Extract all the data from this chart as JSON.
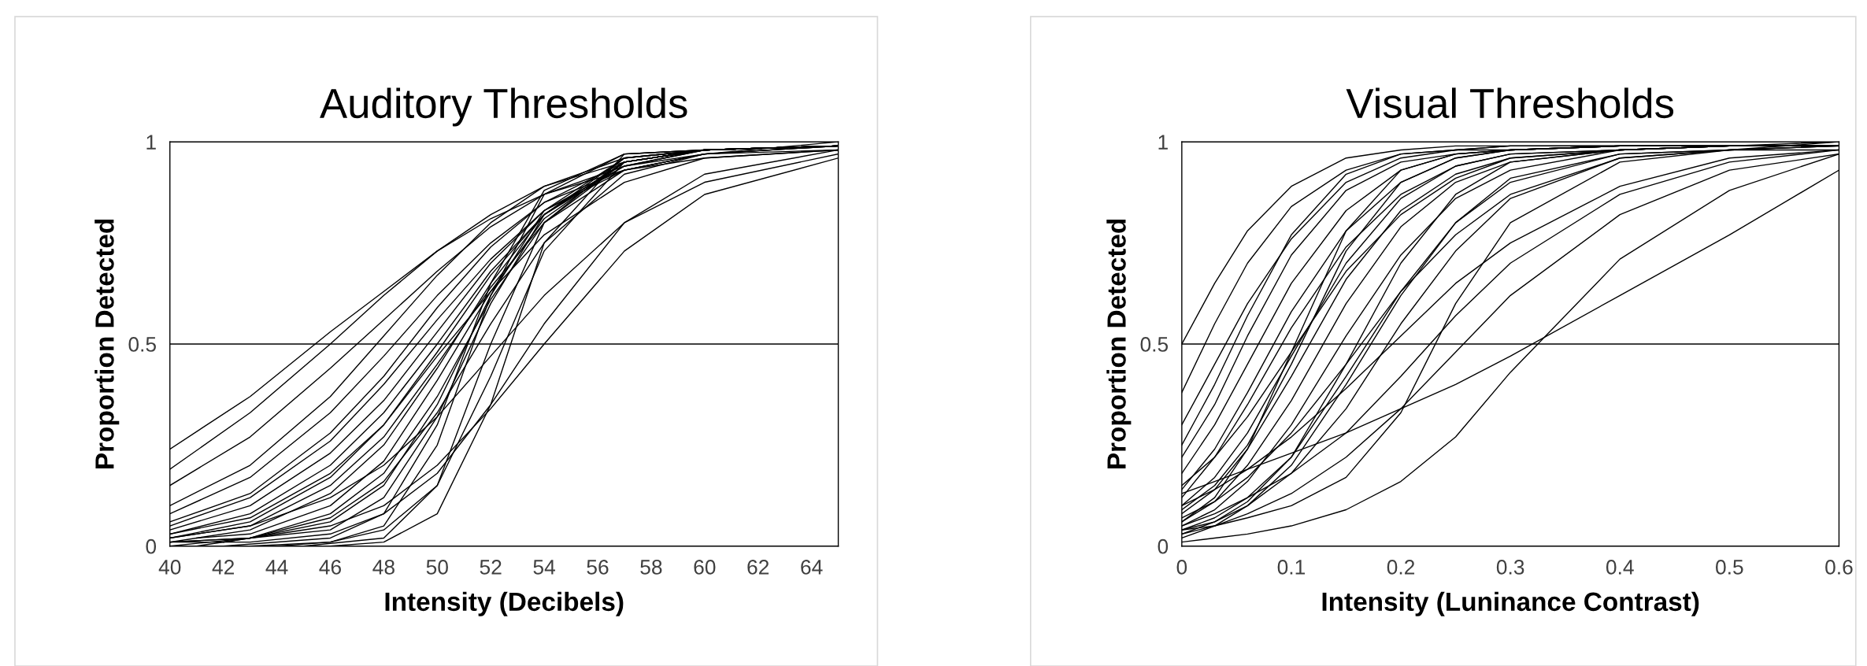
{
  "chart_data": [
    {
      "type": "line",
      "title": "Auditory Thresholds",
      "xlabel": "Intensity (Decibels)",
      "ylabel": "Proportion Detected",
      "color": "#000000",
      "xlim": [
        40,
        65
      ],
      "xticks": [
        40,
        42,
        44,
        46,
        48,
        50,
        52,
        54,
        56,
        58,
        60,
        62,
        64
      ],
      "ylim": [
        0,
        1
      ],
      "yticks": [
        0,
        0.5,
        1
      ],
      "grid": "y",
      "x": [
        40,
        43,
        46,
        48,
        50,
        52,
        54,
        57,
        60,
        65
      ],
      "series": [
        {
          "values": [
            0.24,
            0.37,
            0.53,
            0.63,
            0.73,
            0.81,
            0.87,
            0.93,
            0.96,
            0.98
          ]
        },
        {
          "values": [
            0.19,
            0.33,
            0.5,
            0.62,
            0.73,
            0.82,
            0.89,
            0.95,
            0.98,
            0.99
          ]
        },
        {
          "values": [
            0.15,
            0.27,
            0.44,
            0.56,
            0.68,
            0.79,
            0.87,
            0.94,
            0.97,
            0.99
          ]
        },
        {
          "values": [
            0.1,
            0.2,
            0.37,
            0.52,
            0.67,
            0.8,
            0.89,
            0.96,
            0.98,
            0.99
          ]
        },
        {
          "values": [
            0.08,
            0.17,
            0.33,
            0.47,
            0.62,
            0.75,
            0.85,
            0.93,
            0.97,
            0.99
          ]
        },
        {
          "values": [
            0.06,
            0.13,
            0.28,
            0.42,
            0.59,
            0.74,
            0.85,
            0.95,
            0.98,
            0.99
          ]
        },
        {
          "values": [
            0.05,
            0.12,
            0.26,
            0.4,
            0.56,
            0.71,
            0.83,
            0.93,
            0.97,
            0.99
          ]
        },
        {
          "values": [
            0.04,
            0.1,
            0.23,
            0.36,
            0.53,
            0.7,
            0.83,
            0.94,
            0.98,
            0.99
          ]
        },
        {
          "values": [
            0.03,
            0.08,
            0.2,
            0.33,
            0.5,
            0.68,
            0.82,
            0.94,
            0.98,
            0.99
          ]
        },
        {
          "values": [
            0.02,
            0.06,
            0.17,
            0.3,
            0.48,
            0.67,
            0.82,
            0.95,
            0.98,
            0.99
          ]
        },
        {
          "values": [
            0.02,
            0.05,
            0.15,
            0.27,
            0.45,
            0.64,
            0.8,
            0.93,
            0.97,
            0.98
          ]
        },
        {
          "values": [
            0.01,
            0.04,
            0.13,
            0.25,
            0.44,
            0.65,
            0.82,
            0.95,
            0.98,
            0.99
          ]
        },
        {
          "x": [
            41,
            43,
            46,
            48,
            50,
            52,
            54,
            57,
            60,
            65
          ],
          "values": [
            0.02,
            0.03,
            0.1,
            0.21,
            0.41,
            0.63,
            0.81,
            0.95,
            0.98,
            0.99
          ]
        },
        {
          "x": [
            42,
            43,
            46,
            48,
            50,
            52,
            54,
            57,
            60,
            65
          ],
          "values": [
            0.01,
            0.02,
            0.08,
            0.18,
            0.37,
            0.61,
            0.8,
            0.95,
            0.98,
            0.99
          ]
        },
        {
          "values": [
            0.0,
            0.02,
            0.06,
            0.15,
            0.35,
            0.62,
            0.83,
            0.96,
            0.98,
            0.99
          ]
        },
        {
          "x": [
            41,
            43,
            46,
            48,
            50,
            52,
            54,
            57,
            60,
            65
          ],
          "values": [
            0.0,
            0.02,
            0.04,
            0.12,
            0.32,
            0.6,
            0.82,
            0.96,
            0.98,
            0.99
          ]
        },
        {
          "x": [
            42,
            46,
            48,
            50,
            52,
            54,
            57,
            60,
            65
          ],
          "values": [
            0.0,
            0.02,
            0.08,
            0.3,
            0.65,
            0.88,
            0.97,
            0.98,
            0.99
          ]
        },
        {
          "x": [
            44,
            46,
            48,
            50,
            52,
            54,
            57,
            60,
            65
          ],
          "values": [
            0.0,
            0.01,
            0.05,
            0.25,
            0.62,
            0.87,
            0.97,
            0.98,
            0.99
          ]
        },
        {
          "x": [
            45,
            48,
            50,
            52,
            54,
            57,
            60,
            65
          ],
          "values": [
            0.0,
            0.02,
            0.15,
            0.5,
            0.8,
            0.96,
            0.98,
            0.99
          ]
        },
        {
          "x": [
            46,
            48,
            50,
            52,
            54,
            57,
            60,
            65
          ],
          "values": [
            0.0,
            0.01,
            0.08,
            0.35,
            0.75,
            0.97,
            0.98,
            0.99
          ]
        },
        {
          "values": [
            0.01,
            0.01,
            0.03,
            0.08,
            0.18,
            0.35,
            0.55,
            0.8,
            0.92,
            0.98
          ]
        },
        {
          "values": [
            0.01,
            0.02,
            0.05,
            0.1,
            0.2,
            0.34,
            0.5,
            0.73,
            0.87,
            0.96
          ]
        },
        {
          "values": [
            0.02,
            0.05,
            0.12,
            0.2,
            0.32,
            0.47,
            0.62,
            0.8,
            0.9,
            0.97
          ]
        },
        {
          "values": [
            0.01,
            0.02,
            0.07,
            0.16,
            0.33,
            0.55,
            0.75,
            0.92,
            0.97,
            1.0
          ]
        },
        {
          "x": [
            43,
            46,
            48,
            50,
            52,
            54,
            57,
            60,
            65
          ],
          "values": [
            0.0,
            0.01,
            0.04,
            0.15,
            0.42,
            0.73,
            0.95,
            0.98,
            0.99
          ]
        },
        {
          "values": [
            0.03,
            0.07,
            0.18,
            0.3,
            0.47,
            0.63,
            0.77,
            0.9,
            0.96,
            0.98
          ]
        }
      ]
    },
    {
      "type": "line",
      "title": "Visual Thresholds",
      "xlabel": "Intensity (Luninance Contrast)",
      "ylabel": "Proportion Detected",
      "color": "#000000",
      "xlim": [
        0,
        0.6
      ],
      "xticks": [
        0,
        0.1,
        0.2,
        0.3,
        0.4,
        0.5,
        0.6
      ],
      "ylim": [
        0,
        1
      ],
      "yticks": [
        0,
        0.5,
        1
      ],
      "grid": "y",
      "x": [
        0,
        0.03,
        0.06,
        0.1,
        0.15,
        0.2,
        0.25,
        0.3,
        0.4,
        0.5,
        0.6
      ],
      "series": [
        {
          "values": [
            0.5,
            0.65,
            0.78,
            0.89,
            0.96,
            0.98,
            0.99,
            0.99,
            0.99,
            0.99,
            0.99
          ]
        },
        {
          "values": [
            0.38,
            0.55,
            0.7,
            0.84,
            0.93,
            0.97,
            0.98,
            0.99,
            0.99,
            0.99,
            0.99
          ]
        },
        {
          "values": [
            0.3,
            0.45,
            0.6,
            0.76,
            0.9,
            0.96,
            0.98,
            0.98,
            0.99,
            0.99,
            0.99
          ]
        },
        {
          "values": [
            0.22,
            0.35,
            0.52,
            0.72,
            0.88,
            0.95,
            0.97,
            0.98,
            0.99,
            0.99,
            0.99
          ]
        },
        {
          "values": [
            0.18,
            0.3,
            0.45,
            0.65,
            0.83,
            0.93,
            0.97,
            0.98,
            0.99,
            0.99,
            0.99
          ]
        },
        {
          "values": [
            0.14,
            0.24,
            0.38,
            0.58,
            0.78,
            0.9,
            0.96,
            0.98,
            0.99,
            0.99,
            0.99
          ]
        },
        {
          "values": [
            0.12,
            0.22,
            0.35,
            0.54,
            0.74,
            0.87,
            0.94,
            0.97,
            0.98,
            0.99,
            0.99
          ]
        },
        {
          "values": [
            0.1,
            0.17,
            0.28,
            0.47,
            0.7,
            0.86,
            0.94,
            0.97,
            0.98,
            0.99,
            0.99
          ]
        },
        {
          "values": [
            0.08,
            0.14,
            0.24,
            0.42,
            0.66,
            0.83,
            0.92,
            0.96,
            0.98,
            0.99,
            0.99
          ]
        },
        {
          "values": [
            0.06,
            0.11,
            0.2,
            0.36,
            0.6,
            0.79,
            0.9,
            0.95,
            0.98,
            0.99,
            0.99
          ]
        },
        {
          "values": [
            0.05,
            0.09,
            0.16,
            0.3,
            0.52,
            0.72,
            0.86,
            0.93,
            0.98,
            0.99,
            0.99
          ]
        },
        {
          "values": [
            0.07,
            0.11,
            0.17,
            0.28,
            0.45,
            0.63,
            0.77,
            0.87,
            0.96,
            0.98,
            0.99
          ]
        },
        {
          "values": [
            0.04,
            0.07,
            0.12,
            0.22,
            0.42,
            0.63,
            0.8,
            0.9,
            0.97,
            0.98,
            0.99
          ]
        },
        {
          "values": [
            0.1,
            0.14,
            0.19,
            0.27,
            0.39,
            0.52,
            0.65,
            0.75,
            0.89,
            0.96,
            0.98
          ]
        },
        {
          "values": [
            0.05,
            0.08,
            0.12,
            0.18,
            0.28,
            0.42,
            0.57,
            0.7,
            0.87,
            0.95,
            0.98
          ]
        },
        {
          "values": [
            0.03,
            0.05,
            0.08,
            0.13,
            0.22,
            0.34,
            0.48,
            0.62,
            0.82,
            0.93,
            0.97
          ]
        },
        {
          "values": [
            0.01,
            0.02,
            0.03,
            0.05,
            0.09,
            0.16,
            0.27,
            0.43,
            0.71,
            0.88,
            0.97
          ]
        },
        {
          "values": [
            0.13,
            0.16,
            0.19,
            0.23,
            0.28,
            0.34,
            0.4,
            0.47,
            0.62,
            0.77,
            0.93
          ]
        },
        {
          "values": [
            0.04,
            0.06,
            0.1,
            0.18,
            0.34,
            0.55,
            0.73,
            0.86,
            0.96,
            0.98,
            0.98
          ]
        },
        {
          "values": [
            0.03,
            0.06,
            0.11,
            0.22,
            0.45,
            0.7,
            0.87,
            0.95,
            0.98,
            0.99,
            0.99
          ]
        },
        {
          "values": [
            0.09,
            0.15,
            0.25,
            0.45,
            0.73,
            0.9,
            0.96,
            0.98,
            0.99,
            0.99,
            0.99
          ]
        },
        {
          "values": [
            0.06,
            0.12,
            0.24,
            0.48,
            0.78,
            0.93,
            0.97,
            0.98,
            0.99,
            0.99,
            1.0
          ]
        },
        {
          "values": [
            0.25,
            0.4,
            0.57,
            0.77,
            0.92,
            0.97,
            0.98,
            0.99,
            0.99,
            0.99,
            0.99
          ]
        },
        {
          "values": [
            0.02,
            0.05,
            0.1,
            0.2,
            0.4,
            0.62,
            0.8,
            0.91,
            0.97,
            0.98,
            0.99
          ]
        },
        {
          "values": [
            0.15,
            0.22,
            0.32,
            0.48,
            0.68,
            0.82,
            0.91,
            0.96,
            0.98,
            0.99,
            0.99
          ]
        },
        {
          "values": [
            0.04,
            0.05,
            0.07,
            0.1,
            0.17,
            0.33,
            0.6,
            0.8,
            0.95,
            0.98,
            1.0
          ]
        }
      ]
    }
  ]
}
